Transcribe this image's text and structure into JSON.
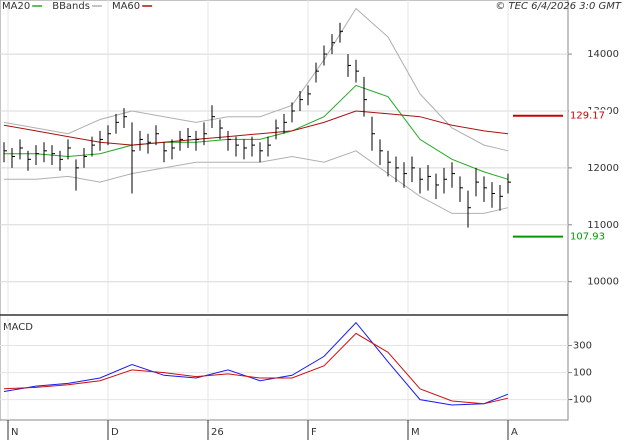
{
  "chart_data": {
    "type": "stock",
    "copyright": "© TEC 6/4/2026 3:0 GMT",
    "xlim": [
      -0.5,
      70.5
    ],
    "xticks": [
      {
        "value": 0.5,
        "label": "N"
      },
      {
        "value": 13,
        "label": "D"
      },
      {
        "value": 25.5,
        "label": "26"
      },
      {
        "value": 38,
        "label": "F"
      },
      {
        "value": 50.5,
        "label": "M"
      },
      {
        "value": 63,
        "label": "A"
      }
    ],
    "ylim": [
      9450,
      14950
    ],
    "yticks": [
      10000,
      11000,
      12000,
      13000,
      14000
    ],
    "grid": true,
    "bars": {
      "color": "#000000",
      "close": [
        12300,
        12200,
        12350,
        12150,
        12250,
        12300,
        12250,
        12150,
        12350,
        12000,
        12200,
        12400,
        12500,
        12600,
        12800,
        12900,
        12300,
        12500,
        12450,
        12600,
        12300,
        12350,
        12500,
        12550,
        12500,
        12600,
        12900,
        12700,
        12500,
        12400,
        12350,
        12400,
        12300,
        12400,
        12700,
        12800,
        13000,
        13200,
        13300,
        13700,
        14000,
        14200,
        14400,
        13800,
        13700,
        13200,
        12600,
        12300,
        12100,
        12000,
        11900,
        12000,
        11800,
        11850,
        11700,
        11800,
        11900,
        11650,
        11300,
        11750,
        11650,
        11550,
        11500,
        11750
      ],
      "high": [
        12450,
        12350,
        12500,
        12300,
        12400,
        12450,
        12400,
        12300,
        12500,
        12150,
        12350,
        12550,
        12650,
        12750,
        12950,
        13050,
        12800,
        12650,
        12600,
        12750,
        12450,
        12500,
        12650,
        12700,
        12650,
        12800,
        13100,
        12850,
        12650,
        12550,
        12500,
        12550,
        12450,
        12550,
        12850,
        12950,
        13150,
        13350,
        13450,
        13850,
        14150,
        14350,
        14550,
        14000,
        13900,
        13600,
        12900,
        12500,
        12300,
        12200,
        12100,
        12200,
        12000,
        12050,
        11900,
        12000,
        12100,
        11850,
        11600,
        12000,
        11850,
        11750,
        11700,
        11900
      ],
      "low": [
        12100,
        12000,
        12150,
        11950,
        12050,
        12100,
        12050,
        11950,
        12150,
        11600,
        12000,
        12200,
        12300,
        12400,
        12600,
        12700,
        11550,
        12300,
        12250,
        12400,
        12100,
        12150,
        12300,
        12350,
        12300,
        12400,
        12700,
        12500,
        12300,
        12200,
        12150,
        12200,
        12100,
        12200,
        12500,
        12600,
        12800,
        13000,
        13100,
        13500,
        13800,
        14000,
        14200,
        13600,
        13500,
        12900,
        12300,
        12050,
        11850,
        11750,
        11650,
        11750,
        11550,
        11600,
        11450,
        11550,
        11650,
        11400,
        10950,
        11500,
        11400,
        11300,
        11250,
        11550
      ]
    },
    "indicator_x": [
      0,
      4,
      8,
      12,
      16,
      20,
      24,
      28,
      32,
      36,
      40,
      44,
      48,
      52,
      56,
      60,
      63
    ],
    "series": [
      {
        "name": "MA20",
        "color": "#22aa22",
        "values": [
          12250,
          12250,
          12200,
          12250,
          12400,
          12450,
          12450,
          12500,
          12500,
          12650,
          12900,
          13450,
          13250,
          12500,
          12150,
          11930,
          11800
        ]
      },
      {
        "name": "BBands",
        "color": "#b0b0b0",
        "values": [
          12800,
          12700,
          12600,
          12850,
          13000,
          12900,
          12800,
          12900,
          12900,
          13100,
          13900,
          14800,
          14300,
          13300,
          12700,
          12400,
          12300
        ],
        "lower": [
          11800,
          11800,
          11850,
          11750,
          11900,
          12000,
          12100,
          12100,
          12100,
          12200,
          12100,
          12300,
          11900,
          11500,
          11200,
          11200,
          11300
        ]
      },
      {
        "name": "MA60",
        "color": "#aa1111",
        "values": [
          12750,
          12650,
          12550,
          12450,
          12400,
          12450,
          12500,
          12550,
          12600,
          12650,
          12800,
          13000,
          12950,
          12900,
          12750,
          12650,
          12600
        ]
      }
    ],
    "levels": [
      {
        "value": 12917,
        "label": "129.17",
        "color": "#cc0000"
      },
      {
        "value": 10793,
        "label": "107.93",
        "color": "#009900"
      }
    ],
    "macd": {
      "title": "MACD",
      "ylim": [
        -251,
        504
      ],
      "yticks": [
        300,
        100,
        -100
      ],
      "series": [
        {
          "color": "#1a1aee",
          "values": [
            -40,
            0,
            20,
            60,
            160,
            80,
            60,
            120,
            40,
            80,
            220,
            470,
            180,
            -100,
            -140,
            -130,
            -60
          ]
        },
        {
          "color": "#cc1111",
          "values": [
            -20,
            -10,
            10,
            40,
            120,
            100,
            70,
            90,
            60,
            60,
            150,
            390,
            250,
            -20,
            -110,
            -130,
            -90
          ]
        }
      ]
    }
  }
}
